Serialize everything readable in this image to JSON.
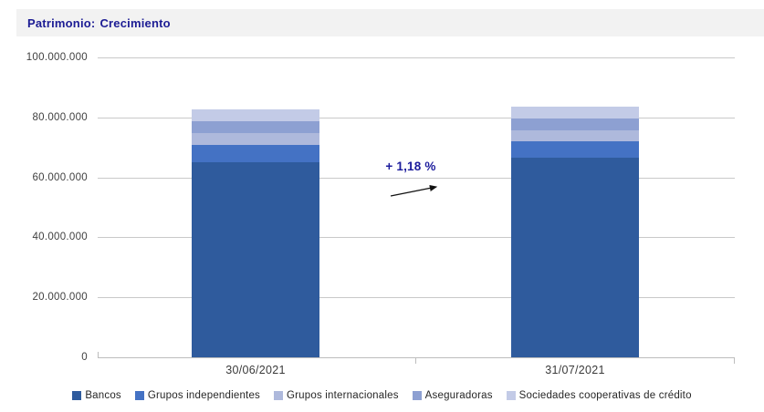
{
  "title": {
    "prefix": "Patrimonio:",
    "value": "Crecimiento"
  },
  "annotation": {
    "text": "+ 1,18 %"
  },
  "colors": {
    "title_text": "#1C1C94",
    "title_background": "#F2F2F2",
    "annotation_text": "#1C1C9C",
    "gridline": "#C9C9C9",
    "axis": "#BDBDBD",
    "axis_label_text": "#404040"
  },
  "chart_data": {
    "type": "bar",
    "stacked": true,
    "title": "Patrimonio: Crecimiento",
    "categories": [
      "30/06/2021",
      "31/07/2021"
    ],
    "series": [
      {
        "name": "Bancos",
        "color": "#2F5B9D",
        "values": [
          65200000,
          66500000
        ]
      },
      {
        "name": "Grupos independientes",
        "color": "#4472C4",
        "values": [
          5500000,
          5500000
        ]
      },
      {
        "name": "Grupos internacionales",
        "color": "#AEB9DC",
        "values": [
          4200000,
          3800000
        ]
      },
      {
        "name": "Aseguradoras",
        "color": "#8DA0D2",
        "values": [
          3700000,
          3800000
        ]
      },
      {
        "name": "Sociedades cooperativas de crédito",
        "color": "#C3CBE7",
        "values": [
          4100000,
          4080000
        ]
      }
    ],
    "totals_estimated": [
      82700000,
      83680000
    ],
    "growth_pct_label": "+ 1,18 %",
    "xlabel": "",
    "ylabel": "",
    "ylim": [
      0,
      100000000
    ],
    "yticks": [
      "100.000.000",
      "80.000.000",
      "60.000.000",
      "40.000.000",
      "20.000.000",
      "0"
    ],
    "grid": true,
    "legend_position": "bottom"
  }
}
